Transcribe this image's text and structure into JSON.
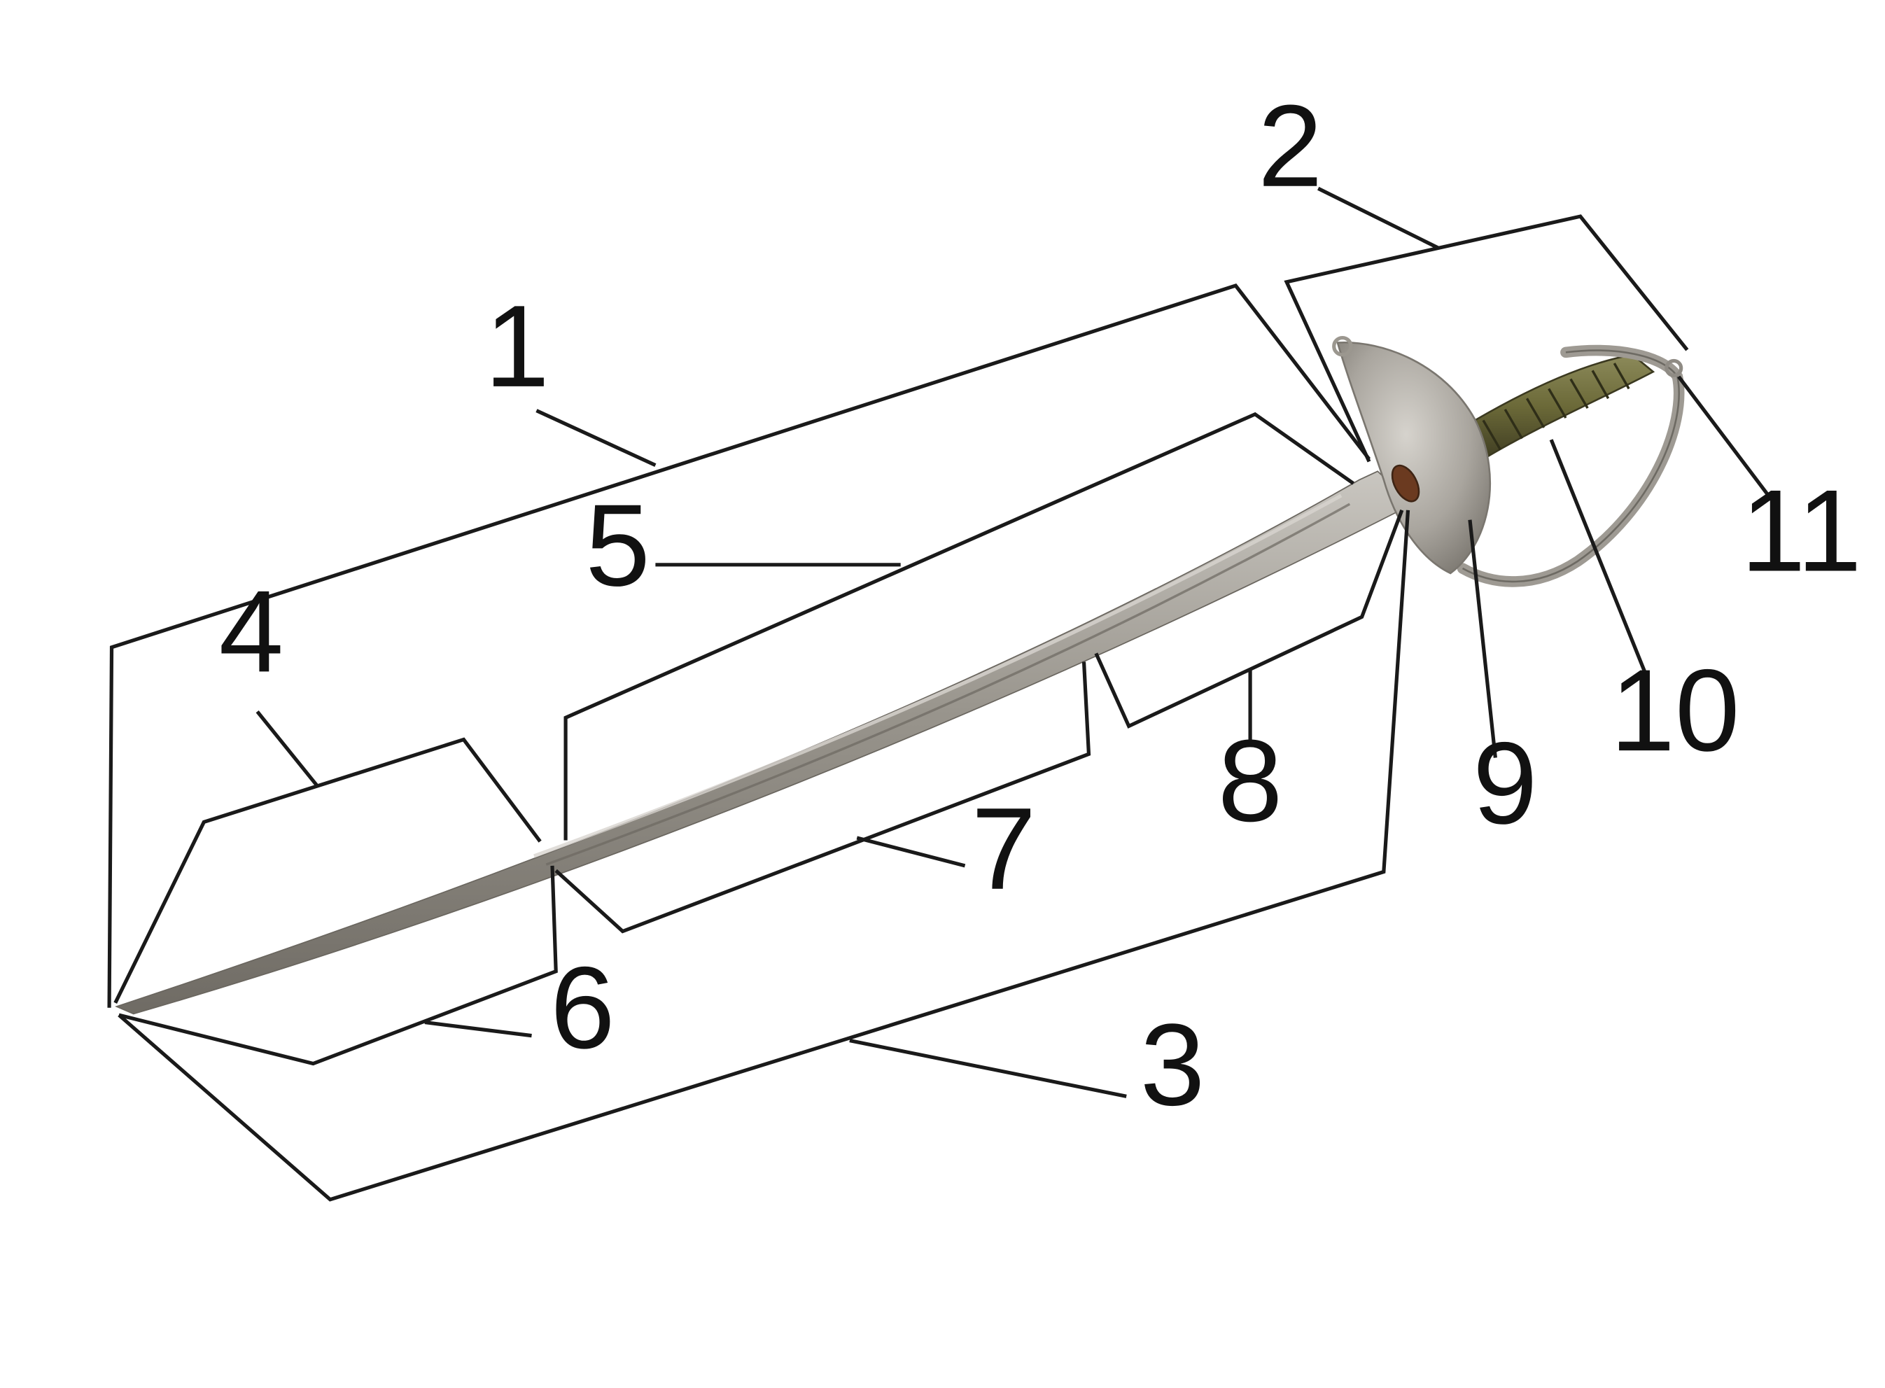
{
  "diagram": {
    "callouts": [
      {
        "id": 1,
        "label": "1"
      },
      {
        "id": 2,
        "label": "2"
      },
      {
        "id": 3,
        "label": "3"
      },
      {
        "id": 4,
        "label": "4"
      },
      {
        "id": 5,
        "label": "5"
      },
      {
        "id": 6,
        "label": "6"
      },
      {
        "id": 7,
        "label": "7"
      },
      {
        "id": 8,
        "label": "8"
      },
      {
        "id": 9,
        "label": "9"
      },
      {
        "id": 10,
        "label": "10"
      },
      {
        "id": 11,
        "label": "11"
      }
    ],
    "colors": {
      "background": "#ffffff",
      "lines": "#1a1a1a",
      "blade": "#9a958d",
      "guard": "#a8a49d",
      "grip": "#6e6a40"
    }
  }
}
